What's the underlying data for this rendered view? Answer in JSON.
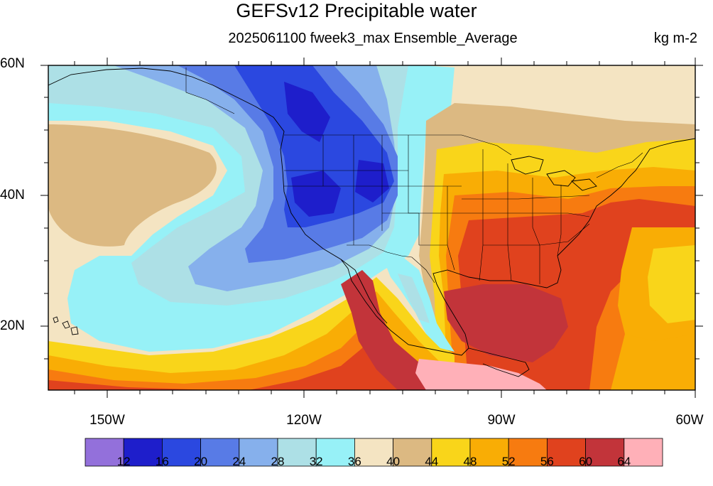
{
  "title": "GEFSv12 Precipitable water",
  "subtitle": "2025061100 fweek3_max Ensemble_Average",
  "units": "kg m-2",
  "map": {
    "lat_labels": [
      "60N",
      "40N",
      "20N"
    ],
    "lon_labels": [
      "150W",
      "120W",
      "90W",
      "60W"
    ],
    "lat_range": [
      10,
      60
    ],
    "lon_range": [
      -160,
      -60
    ],
    "projection": "cylindrical-equidistant",
    "features": [
      "coastlines",
      "us-state-borders",
      "country-borders"
    ]
  },
  "colorbar": {
    "levels": [
      "12",
      "16",
      "20",
      "24",
      "28",
      "32",
      "36",
      "40",
      "44",
      "48",
      "52",
      "56",
      "60",
      "64"
    ],
    "colors": [
      "#9370db",
      "#1e1ecb",
      "#2b48e0",
      "#587be6",
      "#86b0ec",
      "#ade0e6",
      "#97f1f7",
      "#f4e4c2",
      "#dcb982",
      "#f9d51a",
      "#f9ad05",
      "#f77b10",
      "#e0421e",
      "#c2343a",
      "#ffb0b8"
    ]
  }
}
